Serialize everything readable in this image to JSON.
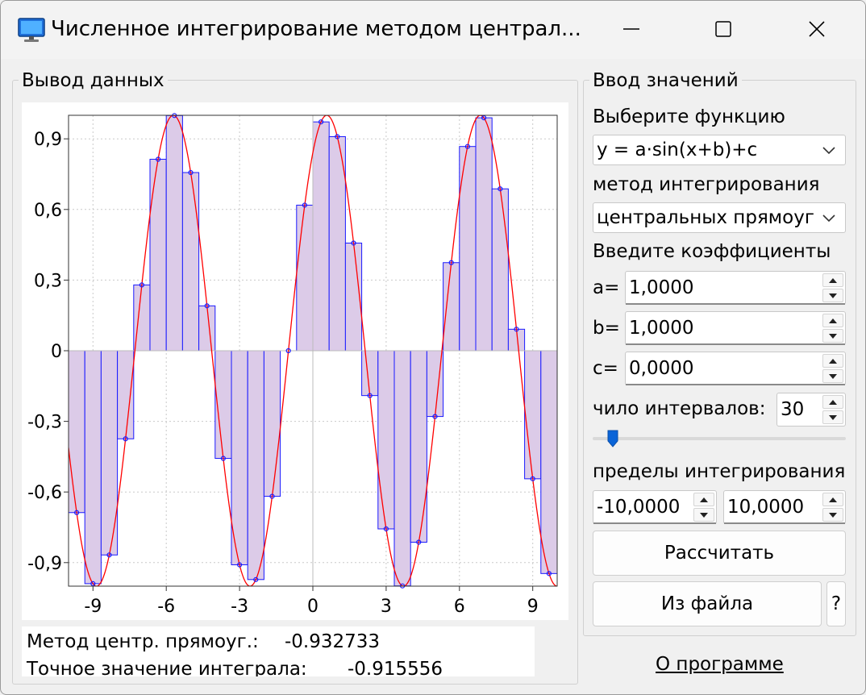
{
  "window": {
    "title": "Численное интегрирование методом централ...",
    "icon": "monitor-icon"
  },
  "output_group": {
    "title": "Вывод данных"
  },
  "input_group": {
    "title": "Ввод значений"
  },
  "function": {
    "label": "Выберите функцию",
    "selected": "y = a·sin(x+b)+c"
  },
  "method": {
    "label": "метод интегрирования",
    "selected": "центральных прямоуг"
  },
  "coefficients": {
    "label": "Введите коэффициенты",
    "a": {
      "label": "a=",
      "value": "1,0000"
    },
    "b": {
      "label": "b=",
      "value": "1,0000"
    },
    "c": {
      "label": "c=",
      "value": "0,0000"
    }
  },
  "intervals": {
    "label": "чило интервалов:",
    "value": "30",
    "slider_fraction": 0.06
  },
  "limits": {
    "label": "пределы интегрирования",
    "from": "-10,0000",
    "to": "10,0000"
  },
  "buttons": {
    "calculate": "Рассчитать",
    "from_file": "Из файла",
    "help": "?"
  },
  "about_link": "О программе",
  "results": {
    "method_label": "Метод центр. прямоуг.:",
    "method_value": "-0.932733",
    "exact_label": "Точное значение интеграла:",
    "exact_value": "-0.915556"
  },
  "colors": {
    "curve": "#ff0000",
    "rect_fill": "#dccbe8",
    "rect_stroke": "#1a1aff",
    "point": "#1a1aff"
  },
  "chart_data": {
    "type": "area",
    "function": "y = 1·sin(x+1)+0",
    "x_range": [
      -10,
      10
    ],
    "ylim": [
      -1,
      1
    ],
    "x_ticks": [
      "-9",
      "-6",
      "-3",
      "0",
      "3",
      "6",
      "9"
    ],
    "x_tick_values": [
      -9,
      -6,
      -3,
      0,
      3,
      6,
      9
    ],
    "y_ticks": [
      "0,9",
      "0,6",
      "0,3",
      "0",
      "-0,3",
      "-0,6",
      "-0,9"
    ],
    "y_tick_values": [
      0.9,
      0.6,
      0.3,
      0,
      -0.3,
      -0.6,
      -0.9
    ],
    "intervals": 30,
    "grid": true,
    "series": [
      {
        "name": "",
        "kind": "curve"
      },
      {
        "name": "",
        "kind": "midpoint-rectangles"
      }
    ]
  }
}
